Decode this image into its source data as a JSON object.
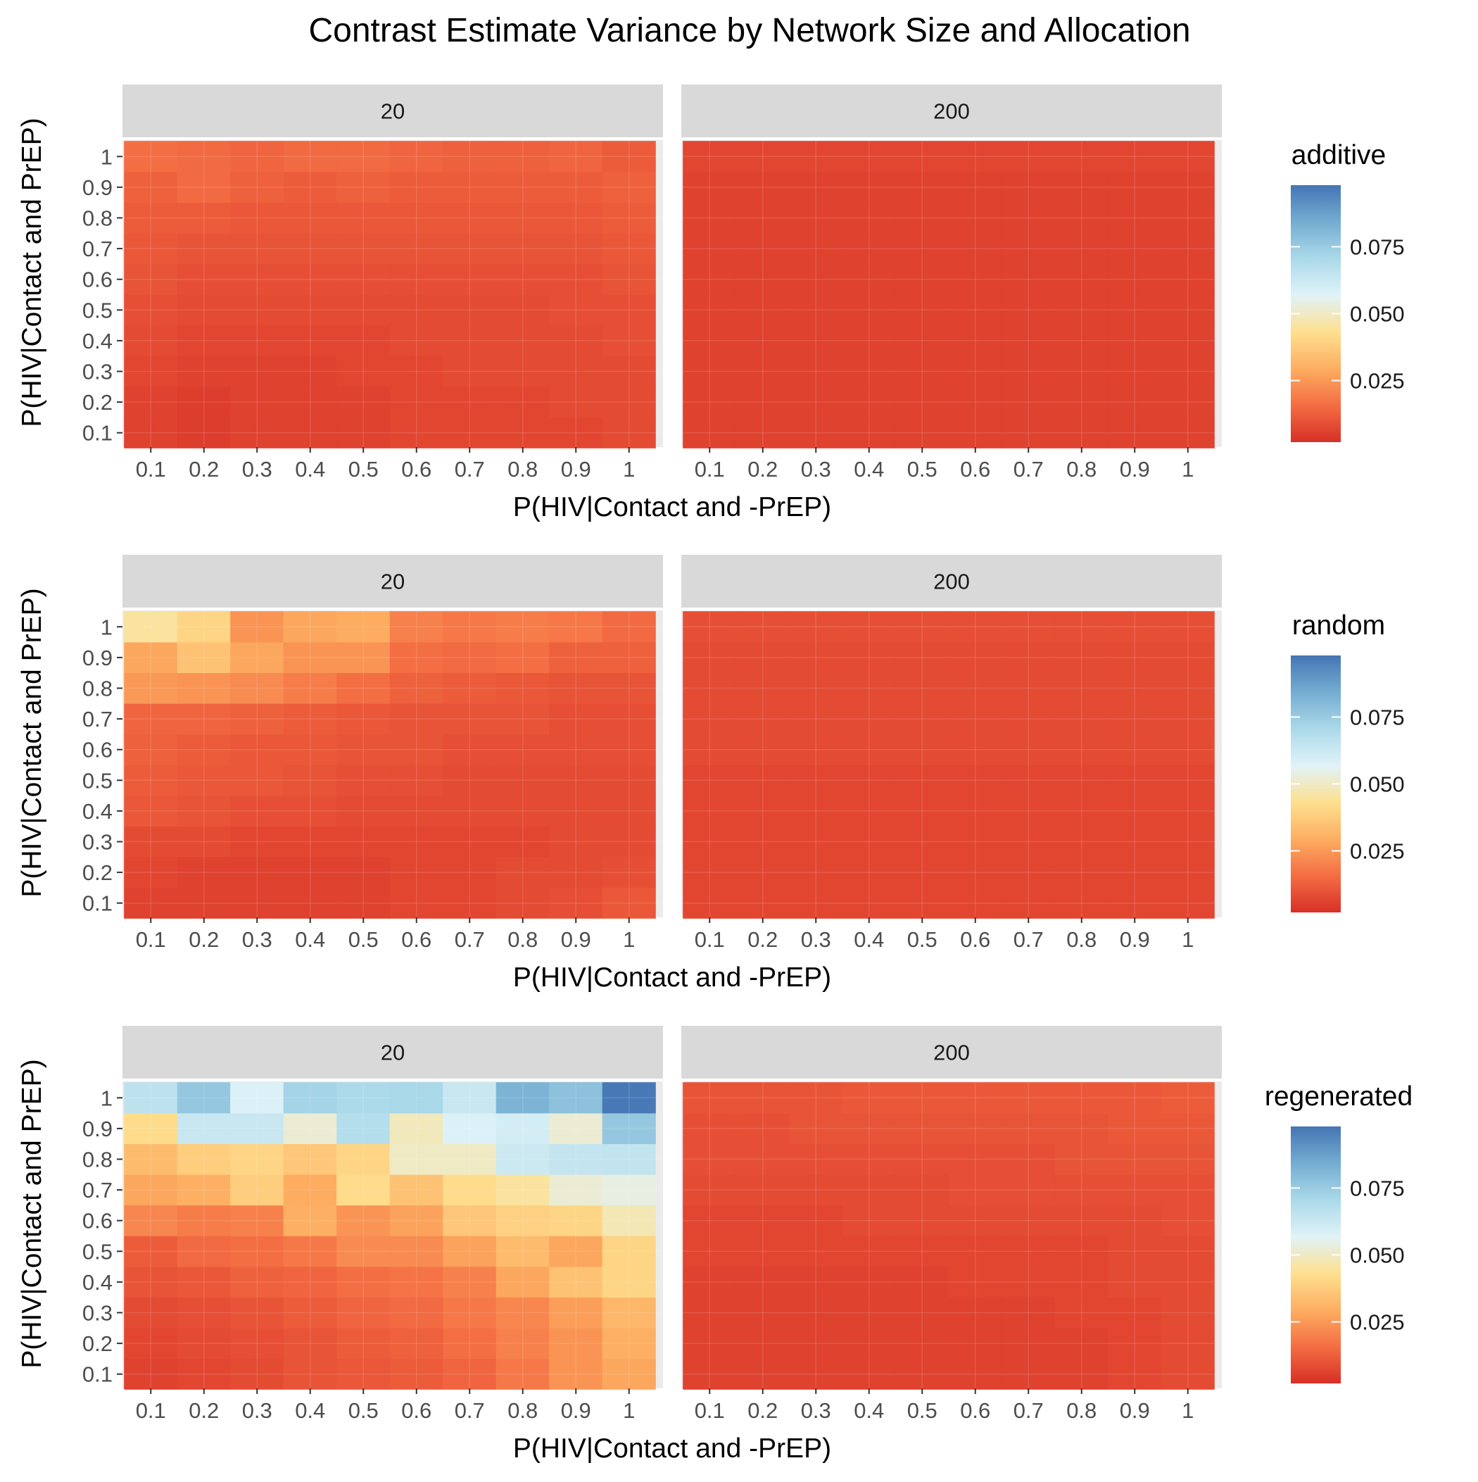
{
  "title": "Contrast Estimate Variance by Network Size and Allocation",
  "axis_labels": {
    "x": "P(HIV|Contact and -PrEP)",
    "y": "P(HIV|Contact and PrEP)"
  },
  "color_scale": {
    "type": "continuous",
    "palette": "RdYlBu",
    "low_color": "#d73027",
    "high_color": "#4575b4",
    "stops": [
      "#d73027",
      "#f46d43",
      "#fdae61",
      "#fee090",
      "#e0f3f8",
      "#abd9e9",
      "#74add1",
      "#4575b4"
    ],
    "domain": [
      0.002,
      0.098
    ],
    "ticks": [
      "0.025",
      "0.050",
      "0.075"
    ],
    "tick_values": [
      0.025,
      0.05,
      0.075
    ]
  },
  "chart_data": {
    "type": "heatmap",
    "title": "Contrast Estimate Variance by Network Size and Allocation",
    "xlabel": "P(HIV|Contact and -PrEP)",
    "ylabel": "P(HIV|Contact and PrEP)",
    "x": [
      0.1,
      0.2,
      0.3,
      0.4,
      0.5,
      0.6,
      0.7,
      0.8,
      0.9,
      1
    ],
    "y": [
      0.1,
      0.2,
      0.3,
      0.4,
      0.5,
      0.6,
      0.7,
      0.8,
      0.9,
      1
    ],
    "x_tick_labels": [
      "0.1",
      "0.2",
      "0.3",
      "0.4",
      "0.5",
      "0.6",
      "0.7",
      "0.8",
      "0.9",
      "1"
    ],
    "y_tick_labels": [
      "0.1",
      "0.2",
      "0.3",
      "0.4",
      "0.5",
      "0.6",
      "0.7",
      "0.8",
      "0.9",
      "1"
    ],
    "rows": [
      {
        "legend_title": "additive",
        "panels": [
          {
            "facet": "20",
            "values": [
              [
                0.006,
                0.005,
                0.006,
                0.006,
                0.006,
                0.007,
                0.007,
                0.007,
                0.007,
                0.008
              ],
              [
                0.006,
                0.005,
                0.006,
                0.006,
                0.006,
                0.007,
                0.007,
                0.007,
                0.008,
                0.008
              ],
              [
                0.007,
                0.006,
                0.006,
                0.006,
                0.007,
                0.007,
                0.008,
                0.008,
                0.008,
                0.008
              ],
              [
                0.008,
                0.007,
                0.007,
                0.007,
                0.007,
                0.008,
                0.008,
                0.008,
                0.008,
                0.009
              ],
              [
                0.009,
                0.008,
                0.008,
                0.008,
                0.008,
                0.008,
                0.008,
                0.008,
                0.009,
                0.009
              ],
              [
                0.01,
                0.009,
                0.009,
                0.009,
                0.009,
                0.009,
                0.009,
                0.009,
                0.009,
                0.01
              ],
              [
                0.011,
                0.01,
                0.01,
                0.01,
                0.01,
                0.01,
                0.01,
                0.01,
                0.01,
                0.011
              ],
              [
                0.012,
                0.012,
                0.011,
                0.011,
                0.011,
                0.011,
                0.011,
                0.011,
                0.011,
                0.012
              ],
              [
                0.013,
                0.015,
                0.013,
                0.012,
                0.013,
                0.012,
                0.012,
                0.012,
                0.012,
                0.013
              ],
              [
                0.016,
                0.015,
                0.014,
                0.015,
                0.015,
                0.014,
                0.013,
                0.013,
                0.014,
                0.012
              ]
            ]
          },
          {
            "facet": "200",
            "values": [
              [
                0.006,
                0.006,
                0.006,
                0.006,
                0.006,
                0.006,
                0.006,
                0.006,
                0.006,
                0.006
              ],
              [
                0.006,
                0.006,
                0.006,
                0.006,
                0.006,
                0.006,
                0.006,
                0.006,
                0.006,
                0.006
              ],
              [
                0.006,
                0.006,
                0.006,
                0.006,
                0.006,
                0.006,
                0.006,
                0.006,
                0.006,
                0.006
              ],
              [
                0.006,
                0.006,
                0.006,
                0.006,
                0.006,
                0.006,
                0.006,
                0.006,
                0.006,
                0.006
              ],
              [
                0.006,
                0.006,
                0.006,
                0.006,
                0.006,
                0.006,
                0.006,
                0.006,
                0.006,
                0.006
              ],
              [
                0.006,
                0.006,
                0.006,
                0.006,
                0.006,
                0.006,
                0.006,
                0.006,
                0.006,
                0.006
              ],
              [
                0.006,
                0.006,
                0.006,
                0.006,
                0.006,
                0.006,
                0.006,
                0.006,
                0.006,
                0.006
              ],
              [
                0.006,
                0.006,
                0.006,
                0.006,
                0.006,
                0.006,
                0.006,
                0.006,
                0.006,
                0.006
              ],
              [
                0.006,
                0.006,
                0.006,
                0.006,
                0.006,
                0.006,
                0.006,
                0.006,
                0.006,
                0.006
              ],
              [
                0.007,
                0.007,
                0.007,
                0.007,
                0.007,
                0.007,
                0.007,
                0.007,
                0.007,
                0.007
              ]
            ]
          }
        ]
      },
      {
        "legend_title": "random",
        "panels": [
          {
            "facet": "20",
            "values": [
              [
                0.006,
                0.006,
                0.006,
                0.006,
                0.006,
                0.007,
                0.007,
                0.008,
                0.009,
                0.011
              ],
              [
                0.007,
                0.006,
                0.006,
                0.006,
                0.006,
                0.007,
                0.007,
                0.008,
                0.008,
                0.009
              ],
              [
                0.008,
                0.008,
                0.007,
                0.007,
                0.007,
                0.007,
                0.007,
                0.007,
                0.008,
                0.008
              ],
              [
                0.011,
                0.01,
                0.009,
                0.009,
                0.008,
                0.008,
                0.008,
                0.008,
                0.008,
                0.008
              ],
              [
                0.012,
                0.011,
                0.011,
                0.01,
                0.009,
                0.009,
                0.008,
                0.008,
                0.008,
                0.008
              ],
              [
                0.013,
                0.012,
                0.011,
                0.011,
                0.01,
                0.01,
                0.009,
                0.009,
                0.009,
                0.009
              ],
              [
                0.014,
                0.014,
                0.013,
                0.012,
                0.011,
                0.01,
                0.01,
                0.01,
                0.009,
                0.009
              ],
              [
                0.025,
                0.024,
                0.022,
                0.019,
                0.016,
                0.013,
                0.012,
                0.011,
                0.01,
                0.01
              ],
              [
                0.028,
                0.035,
                0.028,
                0.024,
                0.024,
                0.016,
                0.015,
                0.016,
                0.013,
                0.013
              ],
              [
                0.045,
                0.04,
                0.024,
                0.028,
                0.029,
                0.02,
                0.018,
                0.019,
                0.018,
                0.015
              ]
            ]
          },
          {
            "facet": "200",
            "values": [
              [
                0.007,
                0.007,
                0.007,
                0.007,
                0.007,
                0.007,
                0.007,
                0.007,
                0.007,
                0.007
              ],
              [
                0.007,
                0.007,
                0.007,
                0.007,
                0.007,
                0.007,
                0.007,
                0.007,
                0.007,
                0.007
              ],
              [
                0.007,
                0.007,
                0.007,
                0.007,
                0.007,
                0.007,
                0.007,
                0.007,
                0.007,
                0.007
              ],
              [
                0.007,
                0.007,
                0.007,
                0.007,
                0.007,
                0.007,
                0.007,
                0.007,
                0.007,
                0.007
              ],
              [
                0.007,
                0.007,
                0.007,
                0.007,
                0.007,
                0.007,
                0.007,
                0.007,
                0.007,
                0.007
              ],
              [
                0.008,
                0.008,
                0.008,
                0.008,
                0.008,
                0.008,
                0.008,
                0.008,
                0.008,
                0.008
              ],
              [
                0.008,
                0.008,
                0.008,
                0.008,
                0.008,
                0.008,
                0.008,
                0.008,
                0.008,
                0.008
              ],
              [
                0.008,
                0.008,
                0.008,
                0.008,
                0.008,
                0.008,
                0.008,
                0.008,
                0.008,
                0.008
              ],
              [
                0.008,
                0.008,
                0.008,
                0.008,
                0.008,
                0.008,
                0.008,
                0.008,
                0.008,
                0.008
              ],
              [
                0.009,
                0.009,
                0.009,
                0.009,
                0.009,
                0.009,
                0.009,
                0.009,
                0.009,
                0.009
              ]
            ]
          }
        ]
      },
      {
        "legend_title": "regenerated",
        "panels": [
          {
            "facet": "20",
            "values": [
              [
                0.006,
                0.007,
                0.008,
                0.01,
                0.011,
                0.012,
                0.014,
                0.018,
                0.024,
                0.028
              ],
              [
                0.007,
                0.008,
                0.009,
                0.01,
                0.012,
                0.013,
                0.016,
                0.02,
                0.024,
                0.03
              ],
              [
                0.008,
                0.009,
                0.01,
                0.012,
                0.014,
                0.015,
                0.018,
                0.021,
                0.026,
                0.032
              ],
              [
                0.01,
                0.011,
                0.013,
                0.014,
                0.016,
                0.017,
                0.02,
                0.028,
                0.035,
                0.04
              ],
              [
                0.012,
                0.015,
                0.016,
                0.018,
                0.022,
                0.022,
                0.027,
                0.033,
                0.028,
                0.04
              ],
              [
                0.021,
                0.019,
                0.02,
                0.03,
                0.024,
                0.027,
                0.036,
                0.039,
                0.04,
                0.048
              ],
              [
                0.028,
                0.03,
                0.038,
                0.029,
                0.042,
                0.035,
                0.042,
                0.045,
                0.052,
                0.054
              ],
              [
                0.033,
                0.038,
                0.04,
                0.036,
                0.04,
                0.05,
                0.05,
                0.062,
                0.064,
                0.065
              ],
              [
                0.042,
                0.063,
                0.063,
                0.052,
                0.068,
                0.049,
                0.058,
                0.06,
                0.052,
                0.076
              ],
              [
                0.066,
                0.076,
                0.058,
                0.072,
                0.07,
                0.071,
                0.063,
                0.082,
                0.078,
                0.097
              ]
            ]
          },
          {
            "facet": "200",
            "values": [
              [
                0.006,
                0.006,
                0.006,
                0.006,
                0.006,
                0.006,
                0.006,
                0.006,
                0.007,
                0.008
              ],
              [
                0.006,
                0.006,
                0.006,
                0.006,
                0.006,
                0.006,
                0.006,
                0.006,
                0.007,
                0.008
              ],
              [
                0.006,
                0.006,
                0.006,
                0.006,
                0.006,
                0.006,
                0.006,
                0.007,
                0.007,
                0.008
              ],
              [
                0.006,
                0.006,
                0.006,
                0.006,
                0.006,
                0.007,
                0.007,
                0.007,
                0.008,
                0.008
              ],
              [
                0.007,
                0.007,
                0.007,
                0.007,
                0.007,
                0.007,
                0.007,
                0.007,
                0.008,
                0.008
              ],
              [
                0.007,
                0.007,
                0.007,
                0.008,
                0.008,
                0.008,
                0.008,
                0.008,
                0.008,
                0.009
              ],
              [
                0.008,
                0.008,
                0.008,
                0.008,
                0.008,
                0.009,
                0.009,
                0.009,
                0.009,
                0.009
              ],
              [
                0.009,
                0.009,
                0.009,
                0.009,
                0.009,
                0.009,
                0.009,
                0.01,
                0.01,
                0.01
              ],
              [
                0.009,
                0.009,
                0.01,
                0.01,
                0.01,
                0.01,
                0.01,
                0.01,
                0.011,
                0.011
              ],
              [
                0.01,
                0.01,
                0.01,
                0.011,
                0.011,
                0.011,
                0.011,
                0.011,
                0.011,
                0.012
              ]
            ]
          }
        ]
      }
    ]
  }
}
